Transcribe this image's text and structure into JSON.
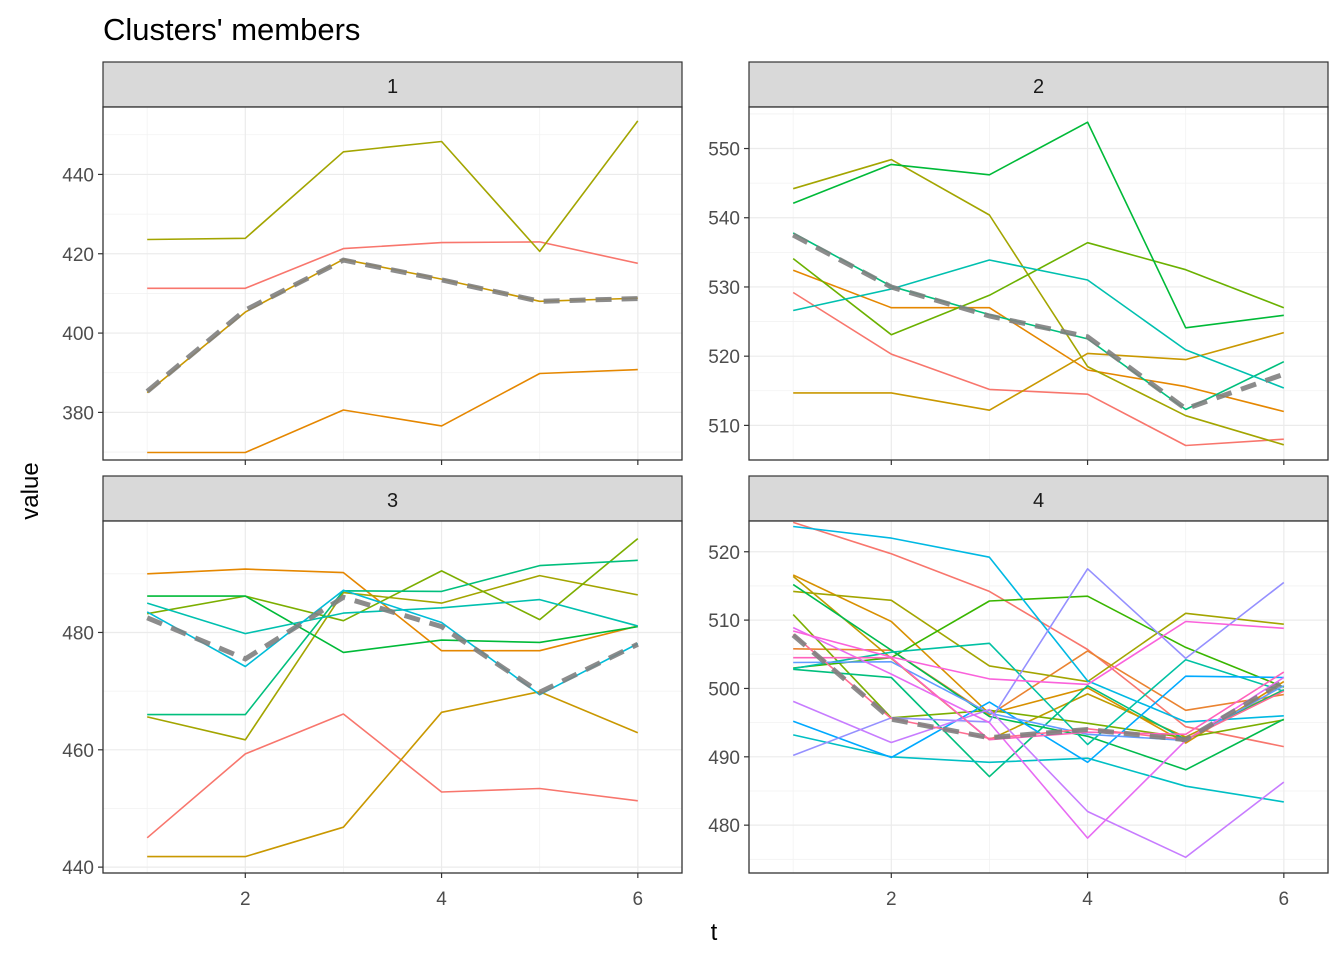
{
  "chart_data": {
    "type": "line",
    "title": "Clusters' members",
    "xlabel": "t",
    "ylabel": "value",
    "x": [
      1,
      2,
      3,
      4,
      5,
      6
    ],
    "xlim": [
      0.55,
      6.45
    ],
    "xticks": [
      2,
      4,
      6
    ],
    "grid": true,
    "legend": "none",
    "panels": [
      {
        "strip": "1",
        "ylim": [
          368,
          457
        ],
        "yticks": [
          380,
          400,
          420,
          440
        ],
        "members": [
          {
            "color": "#F8766D",
            "values": [
              411.3,
              411.3,
              421.3,
              422.8,
              423.0,
              417.6
            ]
          },
          {
            "color": "#E58700",
            "values": [
              369.9,
              369.9,
              380.6,
              376.6,
              389.8,
              390.8
            ]
          },
          {
            "color": "#C99800",
            "values": [
              385.0,
              405.3,
              418.6,
              413.6,
              408.0,
              408.8
            ]
          },
          {
            "color": "#A3A500",
            "values": [
              423.6,
              423.9,
              445.7,
              448.3,
              420.6,
              453.5
            ]
          }
        ],
        "centroid": [
          385.3,
          405.8,
          418.4,
          413.4,
          408.0,
          408.7
        ]
      },
      {
        "strip": "2",
        "ylim": [
          505,
          556
        ],
        "yticks": [
          510,
          520,
          530,
          540,
          550
        ],
        "members": [
          {
            "color": "#F8766D",
            "values": [
              529.2,
              520.3,
              515.2,
              514.5,
              507.1,
              508.0
            ]
          },
          {
            "color": "#E58700",
            "values": [
              532.4,
              527.0,
              527.0,
              518.0,
              515.6,
              512.0
            ]
          },
          {
            "color": "#C99800",
            "values": [
              514.7,
              514.7,
              512.2,
              520.4,
              519.5,
              523.4
            ]
          },
          {
            "color": "#A3A500",
            "values": [
              544.2,
              548.4,
              540.4,
              518.5,
              511.4,
              507.2
            ]
          },
          {
            "color": "#6BB100",
            "values": [
              534.1,
              523.1,
              528.8,
              536.4,
              532.5,
              527.0
            ]
          },
          {
            "color": "#00BA38",
            "values": [
              542.1,
              547.7,
              546.2,
              553.8,
              524.1,
              525.9
            ]
          },
          {
            "color": "#00BF7D",
            "values": [
              537.8,
              530.1,
              526.0,
              522.5,
              512.3,
              519.2
            ]
          },
          {
            "color": "#00C0AF",
            "values": [
              526.6,
              529.7,
              533.9,
              531.0,
              520.9,
              515.4
            ]
          }
        ],
        "centroid": [
          537.5,
          530.0,
          525.8,
          522.8,
          512.4,
          517.4
        ]
      },
      {
        "strip": "3",
        "ylim": [
          439,
          499
        ],
        "yticks": [
          440,
          460,
          480
        ],
        "members": [
          {
            "color": "#F8766D",
            "values": [
              445.0,
              459.3,
              466.1,
              452.8,
              453.4,
              451.3
            ]
          },
          {
            "color": "#E58700",
            "values": [
              490.0,
              490.8,
              490.2,
              476.9,
              476.9,
              481.1
            ]
          },
          {
            "color": "#C99800",
            "values": [
              441.8,
              441.8,
              446.8,
              466.4,
              469.9,
              462.9
            ]
          },
          {
            "color": "#A3A500",
            "values": [
              465.6,
              461.7,
              486.8,
              485.0,
              489.7,
              486.4
            ]
          },
          {
            "color": "#7CAE00",
            "values": [
              483.2,
              486.2,
              482.0,
              490.5,
              482.2,
              496.0
            ]
          },
          {
            "color": "#00BA38",
            "values": [
              486.2,
              486.2,
              476.6,
              478.7,
              478.3,
              481.0
            ]
          },
          {
            "color": "#00BF7D",
            "values": [
              466.0,
              466.0,
              487.1,
              487.0,
              491.4,
              492.3
            ]
          },
          {
            "color": "#00C0AF",
            "values": [
              485.0,
              479.8,
              483.3,
              484.2,
              485.6,
              481.1
            ]
          },
          {
            "color": "#00BCD8",
            "values": [
              483.5,
              474.2,
              487.2,
              481.7,
              469.4,
              478.1
            ]
          }
        ],
        "centroid": [
          482.5,
          475.5,
          486.0,
          481.0,
          469.8,
          478.0
        ]
      },
      {
        "strip": "4",
        "ylim": [
          473,
          524.5
        ],
        "yticks": [
          480,
          490,
          500,
          510,
          520
        ],
        "members": [
          {
            "color": "#F8766D",
            "values": [
              524.3,
              519.7,
              514.2,
              505.7,
              494.4,
              491.5
            ]
          },
          {
            "color": "#EA8331",
            "values": [
              505.8,
              505.6,
              496.1,
              505.5,
              496.8,
              499.1
            ]
          },
          {
            "color": "#D89000",
            "values": [
              516.6,
              509.8,
              496.3,
              500.1,
              492.0,
              501.0
            ]
          },
          {
            "color": "#C09B00",
            "values": [
              516.4,
              504.4,
              492.5,
              499.2,
              492.9,
              499.8
            ]
          },
          {
            "color": "#A3A500",
            "values": [
              514.2,
              512.9,
              503.3,
              501.0,
              511.0,
              509.4
            ]
          },
          {
            "color": "#7CAE00",
            "values": [
              510.8,
              495.7,
              496.8,
              494.9,
              492.8,
              495.4
            ]
          },
          {
            "color": "#39B600",
            "values": [
              503.0,
              504.5,
              512.8,
              513.5,
              506.0,
              500.2
            ]
          },
          {
            "color": "#00BB4E",
            "values": [
              515.2,
              505.6,
              495.9,
              493.0,
              488.1,
              495.5
            ]
          },
          {
            "color": "#00BF7D",
            "values": [
              502.8,
              501.6,
              487.1,
              500.4,
              492.5,
              499.8
            ]
          },
          {
            "color": "#00C1A3",
            "values": [
              502.9,
              505.3,
              506.6,
              491.8,
              504.2,
              499.6
            ]
          },
          {
            "color": "#00BFC4",
            "values": [
              493.2,
              490.0,
              489.2,
              489.8,
              485.7,
              483.4
            ]
          },
          {
            "color": "#00B9E3",
            "values": [
              523.7,
              522.0,
              519.2,
              501.1,
              495.1,
              496.0
            ]
          },
          {
            "color": "#00A9FF",
            "values": [
              495.2,
              489.9,
              498.0,
              489.2,
              501.8,
              501.6
            ]
          },
          {
            "color": "#619CFF",
            "values": [
              503.8,
              503.9,
              496.4,
              493.3,
              492.4,
              500.4
            ]
          },
          {
            "color": "#9590FF",
            "values": [
              490.2,
              495.7,
              495.1,
              517.5,
              504.4,
              515.5
            ]
          },
          {
            "color": "#C77CFF",
            "values": [
              498.1,
              492.1,
              496.9,
              482.0,
              475.3,
              486.3
            ]
          },
          {
            "color": "#E76BF3",
            "values": [
              508.9,
              502.1,
              495.0,
              478.1,
              492.4,
              501.6
            ]
          },
          {
            "color": "#FA62DB",
            "values": [
              508.4,
              504.6,
              501.4,
              500.6,
              509.8,
              508.8
            ]
          },
          {
            "color": "#FF62BC",
            "values": [
              504.5,
              504.5,
              492.5,
              493.6,
              493.3,
              502.4
            ]
          },
          {
            "color": "#FF6C91",
            "values": [
              507.9,
              495.6,
              492.7,
              494.1,
              492.5,
              499.6
            ]
          }
        ],
        "centroid": [
          507.8,
          495.5,
          492.8,
          494.0,
          492.5,
          501.0
        ]
      }
    ],
    "centroid_color": "#808080",
    "centroid_style": "dashed"
  }
}
